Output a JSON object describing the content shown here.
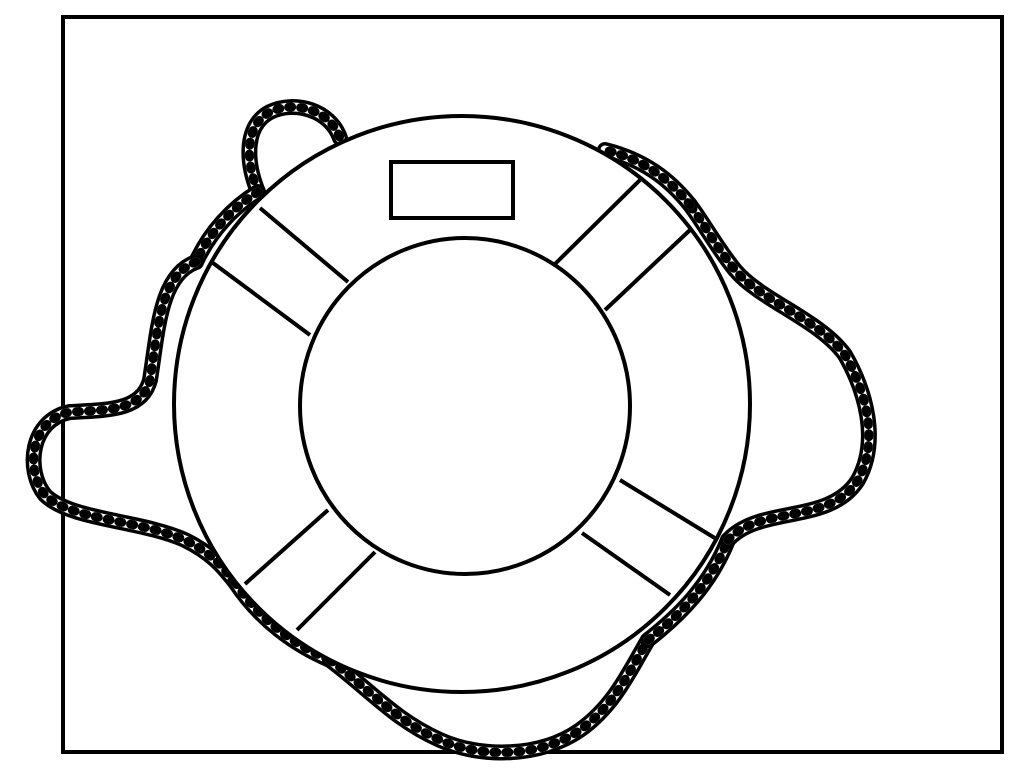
{
  "illustration": {
    "subject": "life-ring",
    "band_count": 4,
    "has_name_plate": true,
    "rope": "twisted-rope-loops"
  },
  "colors": {
    "background": "#ffffff",
    "stroke": "#000000",
    "rope_fill": "#ffffff"
  }
}
